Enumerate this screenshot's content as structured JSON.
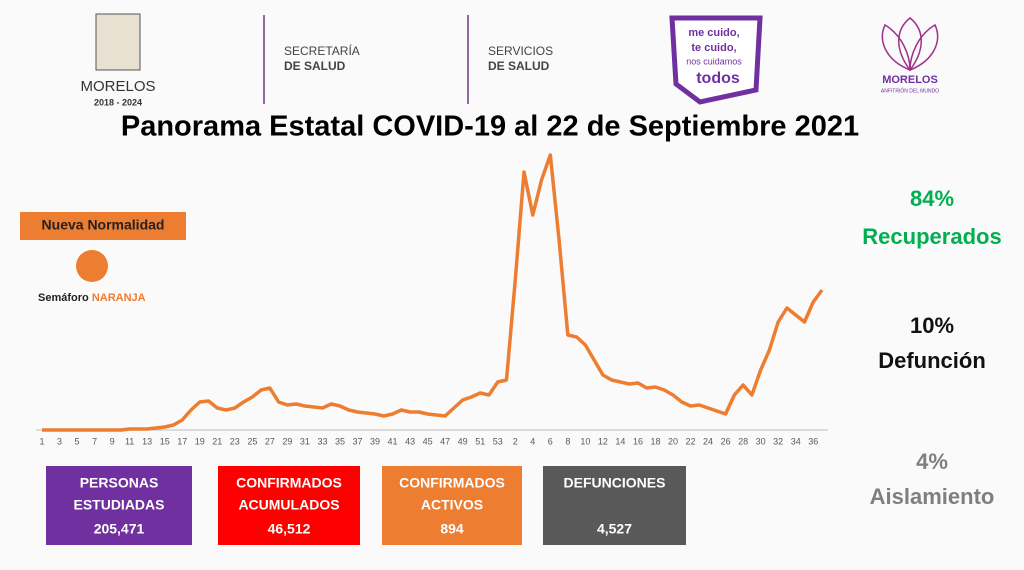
{
  "header": {
    "state_name": "MORELOS",
    "state_years": "2018 - 2024",
    "secretaria": [
      "SECRETARÍA",
      "DE SALUD"
    ],
    "servicios": [
      "SERVICIOS",
      "DE SALUD"
    ],
    "campaign": [
      "me cuido,",
      "te cuido,",
      "nos cuidamos",
      "todos"
    ],
    "anfitrion": [
      "MORELOS",
      "ANFITRIÓN DEL MUNDO"
    ]
  },
  "legend": {
    "label": "Nueva Normalidad",
    "semaforo": "Semáforo",
    "semaforo_color": "NARANJA"
  },
  "stats": [
    {
      "value": "84%",
      "label": "Recuperados",
      "color": "#00b050"
    },
    {
      "value": "10%",
      "label": "Defunción",
      "color": "#111111"
    },
    {
      "value": "4%",
      "label": "Aislamiento",
      "color": "#7f7f7f"
    }
  ],
  "boxes": [
    {
      "label": [
        "PERSONAS",
        "ESTUDIADAS"
      ],
      "value": "205,471",
      "color": "#7030a0"
    },
    {
      "label": [
        "CONFIRMADOS",
        "ACUMULADOS"
      ],
      "value": "46,512",
      "color": "#ff0000"
    },
    {
      "label": [
        "CONFIRMADOS",
        "ACTIVOS"
      ],
      "value": "894",
      "color": "#ed7d31"
    },
    {
      "label": [
        "DEFUNCIONES"
      ],
      "value": "4,527",
      "color": "#595959"
    }
  ],
  "chart_data": {
    "type": "line",
    "title": "Panorama Estatal COVID-19 al 22 de Septiembre 2021",
    "color": "#ed7d31",
    "categories": [
      "1",
      null,
      "3",
      null,
      "5",
      null,
      "7",
      null,
      "9",
      null,
      "11",
      null,
      "13",
      null,
      "15",
      null,
      "17",
      null,
      "19",
      null,
      "21",
      null,
      "23",
      null,
      "25",
      null,
      "27",
      null,
      "29",
      null,
      "31",
      null,
      "33",
      null,
      "35",
      null,
      "37",
      null,
      "39",
      null,
      "41",
      null,
      "43",
      null,
      "45",
      null,
      "47",
      null,
      "49",
      null,
      "51",
      null,
      "53",
      null,
      "2",
      null,
      "4",
      null,
      "6",
      null,
      "8",
      null,
      "10",
      null,
      "12",
      null,
      "14",
      null,
      "16",
      null,
      "18",
      null,
      "20",
      null,
      "22",
      null,
      "24",
      null,
      "26",
      null,
      "28",
      null,
      "30",
      null,
      "32",
      null,
      "34",
      null,
      "36",
      null
    ],
    "values": [
      0,
      0,
      0,
      0,
      0,
      0,
      0,
      0,
      0,
      0,
      1,
      1,
      1,
      2,
      3,
      5,
      10,
      20,
      28,
      29,
      22,
      20,
      22,
      28,
      33,
      40,
      42,
      28,
      25,
      26,
      24,
      23,
      22,
      26,
      24,
      20,
      18,
      17,
      16,
      14,
      16,
      20,
      18,
      18,
      16,
      15,
      14,
      22,
      30,
      33,
      37,
      35,
      48,
      50,
      150,
      258,
      215,
      250,
      275,
      190,
      95,
      93,
      85,
      70,
      55,
      50,
      48,
      46,
      47,
      42,
      43,
      40,
      35,
      28,
      24,
      25,
      22,
      19,
      16,
      35,
      45,
      35,
      60,
      80,
      108,
      122,
      115,
      108,
      128,
      140
    ],
    "ylim": [
      0,
      280
    ]
  }
}
